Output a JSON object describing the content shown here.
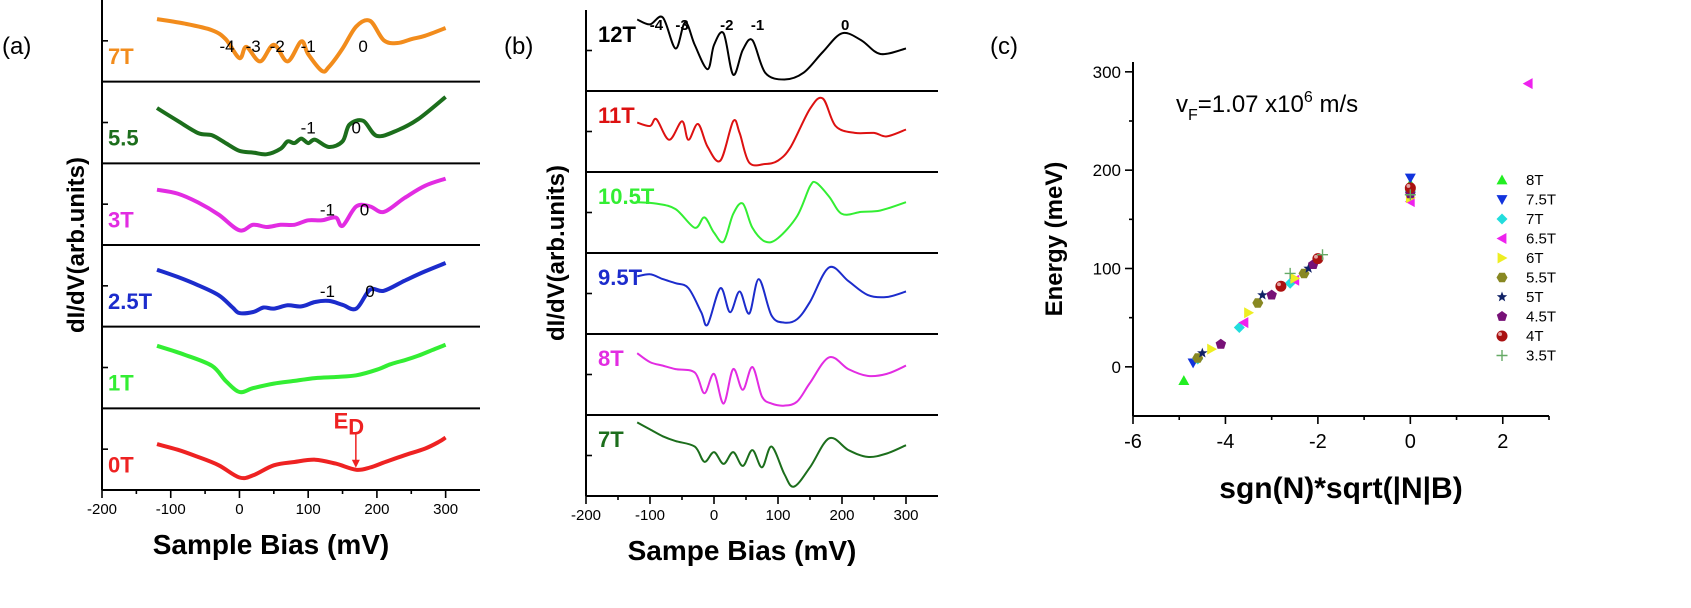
{
  "chart_data": [
    {
      "panel": "(a)",
      "type": "line",
      "xlabel": "Sample Bias (mV)",
      "ylabel": "dI/dV(arb.units)",
      "xlim": [
        -200,
        350
      ],
      "xticks": [
        "-200",
        "-100",
        "0",
        "100",
        "200",
        "300"
      ],
      "series": [
        {
          "name": "7T",
          "color": "#f28c1c",
          "x": [
            -120,
            -80,
            -40,
            -20,
            0,
            10,
            30,
            50,
            70,
            90,
            100,
            120,
            130,
            150,
            170,
            190,
            210,
            230,
            250,
            270,
            300
          ],
          "y": [
            0.98,
            0.9,
            0.78,
            0.62,
            0.28,
            0.48,
            0.22,
            0.52,
            0.22,
            0.58,
            0.35,
            0.05,
            0.12,
            0.45,
            0.85,
            0.95,
            0.6,
            0.55,
            0.62,
            0.68,
            0.82
          ],
          "annotations": [
            {
              "text": "-4",
              "x": -18
            },
            {
              "text": "-3",
              "x": 20
            },
            {
              "text": "-2",
              "x": 55
            },
            {
              "text": "-1",
              "x": 100
            },
            {
              "text": "0",
              "x": 180
            }
          ]
        },
        {
          "name": "5.5",
          "color": "#1c6e1c",
          "x": [
            -120,
            -90,
            -60,
            -40,
            -20,
            0,
            20,
            40,
            60,
            70,
            80,
            90,
            100,
            110,
            130,
            150,
            160,
            180,
            200,
            230,
            260,
            300
          ],
          "y": [
            0.85,
            0.62,
            0.4,
            0.36,
            0.22,
            0.08,
            0.05,
            0.02,
            0.12,
            0.25,
            0.22,
            0.3,
            0.22,
            0.28,
            0.15,
            0.25,
            0.55,
            0.62,
            0.35,
            0.45,
            0.65,
            1.05
          ],
          "annotations": [
            {
              "text": "-1",
              "x": 100
            },
            {
              "text": "0",
              "x": 170
            }
          ]
        },
        {
          "name": "3T",
          "color": "#e22ce2",
          "x": [
            -120,
            -90,
            -60,
            -30,
            0,
            20,
            40,
            60,
            80,
            100,
            120,
            140,
            150,
            170,
            190,
            210,
            240,
            270,
            300
          ],
          "y": [
            0.85,
            0.78,
            0.62,
            0.4,
            0.12,
            0.22,
            0.18,
            0.22,
            0.22,
            0.3,
            0.3,
            0.35,
            0.2,
            0.55,
            0.55,
            0.45,
            0.7,
            0.92,
            1.05
          ],
          "annotations": [
            {
              "text": "-1",
              "x": 128
            },
            {
              "text": "0",
              "x": 182
            }
          ]
        },
        {
          "name": "2.5T",
          "color": "#1c2ccc",
          "x": [
            -120,
            -90,
            -60,
            -30,
            -10,
            0,
            20,
            35,
            50,
            70,
            90,
            110,
            130,
            150,
            170,
            190,
            210,
            240,
            270,
            300
          ],
          "y": [
            0.88,
            0.75,
            0.6,
            0.42,
            0.2,
            0.1,
            0.12,
            0.2,
            0.18,
            0.24,
            0.22,
            0.3,
            0.32,
            0.25,
            0.18,
            0.52,
            0.5,
            0.68,
            0.85,
            1.0
          ],
          "annotations": [
            {
              "text": "-1",
              "x": 128
            },
            {
              "text": "0",
              "x": 190
            }
          ]
        },
        {
          "name": "1T",
          "color": "#33ee33",
          "x": [
            -120,
            -80,
            -40,
            -20,
            0,
            20,
            50,
            80,
            110,
            140,
            170,
            200,
            220,
            240,
            260,
            280,
            300
          ],
          "y": [
            0.98,
            0.82,
            0.62,
            0.35,
            0.15,
            0.22,
            0.3,
            0.35,
            0.4,
            0.42,
            0.45,
            0.55,
            0.65,
            0.72,
            0.8,
            0.9,
            1.0
          ],
          "annotations": []
        },
        {
          "name": "0T",
          "color": "#ee2222",
          "x": [
            -120,
            -90,
            -60,
            -30,
            0,
            20,
            50,
            80,
            110,
            140,
            170,
            190,
            210,
            240,
            270,
            290,
            300
          ],
          "y": [
            0.68,
            0.58,
            0.45,
            0.3,
            0.08,
            0.12,
            0.3,
            0.36,
            0.4,
            0.33,
            0.22,
            0.26,
            0.35,
            0.48,
            0.6,
            0.72,
            0.8
          ],
          "annotations": [
            {
              "text": "E",
              "sub": "D",
              "x": 165
            }
          ]
        }
      ]
    },
    {
      "panel": "(b)",
      "type": "line",
      "xlabel": "Sampe Bias (mV)",
      "ylabel": "dI/dV(arb.units)",
      "xlim": [
        -200,
        350
      ],
      "xticks": [
        "-200",
        "-100",
        "0",
        "100",
        "200",
        "300"
      ],
      "series": [
        {
          "name": "12T",
          "color": "#000000",
          "x": [
            -120,
            -100,
            -80,
            -60,
            -45,
            -30,
            -10,
            0,
            15,
            30,
            45,
            60,
            80,
            110,
            140,
            170,
            200,
            230,
            260,
            300
          ],
          "y": [
            0.92,
            0.85,
            0.95,
            0.5,
            0.88,
            0.55,
            0.2,
            0.55,
            0.72,
            0.12,
            0.48,
            0.62,
            0.15,
            0.05,
            0.15,
            0.45,
            0.72,
            0.62,
            0.42,
            0.5
          ],
          "annotations": [
            {
              "text": "-4",
              "x": -90
            },
            {
              "text": "-3",
              "x": -50
            },
            {
              "text": "-2",
              "x": 20
            },
            {
              "text": "-1",
              "x": 68
            },
            {
              "text": "0",
              "x": 205
            }
          ]
        },
        {
          "name": "11T",
          "color": "#dd1111",
          "x": [
            -120,
            -100,
            -90,
            -70,
            -50,
            -40,
            -25,
            -10,
            10,
            30,
            40,
            55,
            80,
            100,
            120,
            150,
            170,
            190,
            220,
            250,
            270,
            300
          ],
          "y": [
            0.6,
            0.55,
            0.65,
            0.35,
            0.62,
            0.35,
            0.58,
            0.25,
            0.05,
            0.62,
            0.45,
            0.02,
            0.0,
            0.05,
            0.25,
            0.8,
            0.95,
            0.55,
            0.45,
            0.45,
            0.4,
            0.5
          ],
          "annotations": []
        },
        {
          "name": "10.5T",
          "color": "#33ee33",
          "x": [
            -120,
            -90,
            -60,
            -30,
            -15,
            0,
            15,
            30,
            45,
            60,
            80,
            100,
            130,
            150,
            160,
            180,
            200,
            230,
            260,
            300
          ],
          "y": [
            0.62,
            0.6,
            0.52,
            0.25,
            0.4,
            0.18,
            0.05,
            0.45,
            0.6,
            0.25,
            0.05,
            0.1,
            0.42,
            0.85,
            0.9,
            0.7,
            0.45,
            0.48,
            0.5,
            0.62
          ],
          "annotations": []
        },
        {
          "name": "9.5T",
          "color": "#1c2ccc",
          "x": [
            -120,
            -100,
            -80,
            -60,
            -40,
            -20,
            -10,
            10,
            25,
            40,
            55,
            70,
            90,
            110,
            130,
            150,
            180,
            210,
            240,
            270,
            300
          ],
          "y": [
            0.72,
            0.75,
            0.68,
            0.62,
            0.55,
            0.2,
            0.02,
            0.55,
            0.2,
            0.5,
            0.18,
            0.68,
            0.15,
            0.05,
            0.1,
            0.35,
            0.85,
            0.65,
            0.45,
            0.42,
            0.5
          ],
          "annotations": []
        },
        {
          "name": "8T",
          "color": "#e22ce2",
          "x": [
            -120,
            -100,
            -80,
            -60,
            -30,
            -15,
            0,
            15,
            30,
            45,
            60,
            75,
            90,
            110,
            130,
            150,
            180,
            210,
            240,
            270,
            300
          ],
          "y": [
            0.78,
            0.65,
            0.6,
            0.55,
            0.5,
            0.2,
            0.48,
            0.05,
            0.55,
            0.25,
            0.58,
            0.15,
            0.05,
            0.02,
            0.08,
            0.35,
            0.72,
            0.55,
            0.45,
            0.48,
            0.6
          ],
          "annotations": []
        },
        {
          "name": "7T",
          "color": "#1c6e1c",
          "x": [
            -120,
            -100,
            -80,
            -60,
            -30,
            -15,
            0,
            15,
            30,
            45,
            60,
            75,
            90,
            110,
            125,
            150,
            180,
            210,
            240,
            270,
            300
          ],
          "y": [
            0.95,
            0.85,
            0.75,
            0.68,
            0.6,
            0.38,
            0.52,
            0.35,
            0.52,
            0.32,
            0.55,
            0.3,
            0.6,
            0.2,
            0.02,
            0.3,
            0.72,
            0.55,
            0.45,
            0.5,
            0.62
          ],
          "annotations": []
        }
      ]
    },
    {
      "panel": "(c)",
      "type": "scatter",
      "xlabel": "sgn(N)*sqrt(|N|B)",
      "ylabel": "Energy (meV)",
      "xlim": [
        -6,
        3
      ],
      "ylim": [
        -50,
        310
      ],
      "xticks": [
        "-6",
        "-4",
        "-2",
        "0",
        "2"
      ],
      "yticks": [
        "0",
        "100",
        "200",
        "300"
      ],
      "annotation": {
        "text1": "v",
        "sub": "F",
        "text2": "=1.07  x10",
        "sup": "6",
        "text3": " m/s"
      },
      "series": [
        {
          "name": "8T",
          "color": "#22ee22",
          "marker": "triangle-up",
          "x": [
            -4.9,
            0
          ],
          "y": [
            -14,
            186
          ]
        },
        {
          "name": "7.5T",
          "color": "#1133dd",
          "marker": "triangle-down",
          "x": [
            -4.7,
            0
          ],
          "y": [
            4,
            192
          ]
        },
        {
          "name": "7T",
          "color": "#22dddd",
          "marker": "diamond",
          "x": [
            -4.6,
            -3.7,
            -2.6,
            0
          ],
          "y": [
            8,
            40,
            85,
            178
          ]
        },
        {
          "name": "6.5T",
          "color": "#ee22ee",
          "marker": "triangle-left",
          "x": [
            -3.6,
            -2.5,
            0,
            2.55
          ],
          "y": [
            45,
            88,
            168,
            288
          ]
        },
        {
          "name": "6T",
          "color": "#eeee22",
          "marker": "triangle-right",
          "x": [
            -4.3,
            -3.5,
            -2.5,
            0
          ],
          "y": [
            18,
            55,
            90,
            172
          ]
        },
        {
          "name": "5.5T",
          "color": "#888822",
          "marker": "hexagon",
          "x": [
            -4.6,
            -3.3,
            -2.3,
            0
          ],
          "y": [
            9,
            65,
            95,
            180
          ]
        },
        {
          "name": "5T",
          "color": "#112266",
          "marker": "star",
          "x": [
            -4.5,
            -3.2,
            -2.2,
            0
          ],
          "y": [
            14,
            73,
            100,
            178
          ]
        },
        {
          "name": "4.5T",
          "color": "#771177",
          "marker": "pentagon",
          "x": [
            -4.1,
            -3.0,
            -2.1,
            0
          ],
          "y": [
            23,
            73,
            104,
            176
          ]
        },
        {
          "name": "4T",
          "color": "#aa1111",
          "marker": "sphere",
          "x": [
            -2.8,
            -2.0,
            0
          ],
          "y": [
            82,
            110,
            182
          ]
        },
        {
          "name": "3.5T",
          "color": "#66aa66",
          "marker": "plus",
          "x": [
            -2.6,
            -1.9,
            0
          ],
          "y": [
            95,
            114,
            175
          ]
        }
      ]
    }
  ]
}
